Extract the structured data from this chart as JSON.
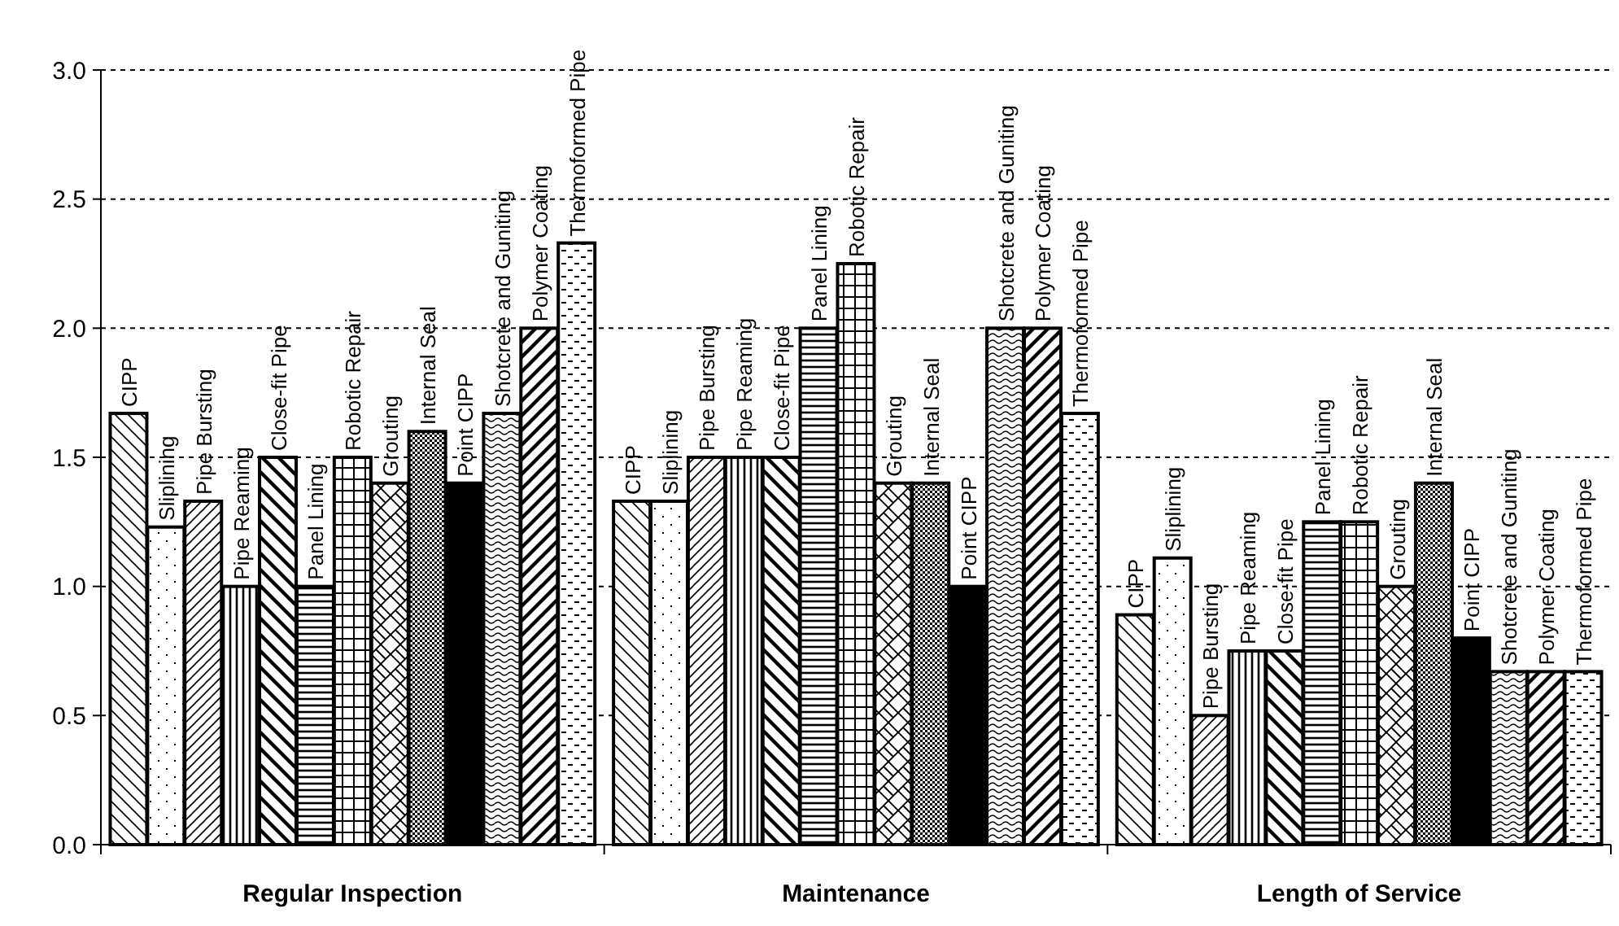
{
  "chart_data": {
    "type": "bar",
    "categories": [
      "Regular Inspection",
      "Maintenance",
      "Length of Service"
    ],
    "series": [
      {
        "name": "CIPP",
        "color": "#000000",
        "values": [
          1.67,
          1.33,
          0.89
        ]
      },
      {
        "name": "Sliplining",
        "color": "#000000",
        "values": [
          1.23,
          1.33,
          1.11
        ]
      },
      {
        "name": "Pipe Bursting",
        "color": "#000000",
        "values": [
          1.33,
          1.5,
          0.5
        ]
      },
      {
        "name": "Pipe Reaming",
        "color": "#000000",
        "values": [
          1.0,
          1.5,
          0.75
        ]
      },
      {
        "name": "Close-fit Pipe",
        "color": "#000000",
        "values": [
          1.5,
          1.5,
          0.75
        ]
      },
      {
        "name": "Panel Lining",
        "color": "#000000",
        "values": [
          1.0,
          2.0,
          1.25
        ]
      },
      {
        "name": "Robotic Repair",
        "color": "#000000",
        "values": [
          1.5,
          2.25,
          1.25
        ]
      },
      {
        "name": "Grouting",
        "color": "#000000",
        "values": [
          1.4,
          1.4,
          1.0
        ]
      },
      {
        "name": "Internal Seal",
        "color": "#000000",
        "values": [
          1.6,
          1.4,
          1.4
        ]
      },
      {
        "name": "Point CIPP",
        "color": "#000000",
        "values": [
          1.4,
          1.0,
          0.8
        ]
      },
      {
        "name": "Shotcrete and Guniting",
        "color": "#000000",
        "values": [
          1.67,
          2.0,
          0.67
        ]
      },
      {
        "name": "Polymer Coating",
        "color": "#000000",
        "values": [
          2.0,
          2.0,
          0.67
        ]
      },
      {
        "name": "Thermoformed Pipe",
        "color": "#000000",
        "values": [
          2.33,
          1.67,
          0.67
        ]
      }
    ],
    "ylim": [
      0,
      3
    ],
    "yticks": [
      {
        "value": 0,
        "label": "0.0"
      },
      {
        "value": 0.5,
        "label": "0.5"
      },
      {
        "value": 1,
        "label": "1.0"
      },
      {
        "value": 1.5,
        "label": "1.5"
      },
      {
        "value": 2,
        "label": "2.0"
      },
      {
        "value": 2.5,
        "label": "2.5"
      },
      {
        "value": 3,
        "label": "3.0"
      }
    ],
    "grid": "y"
  }
}
